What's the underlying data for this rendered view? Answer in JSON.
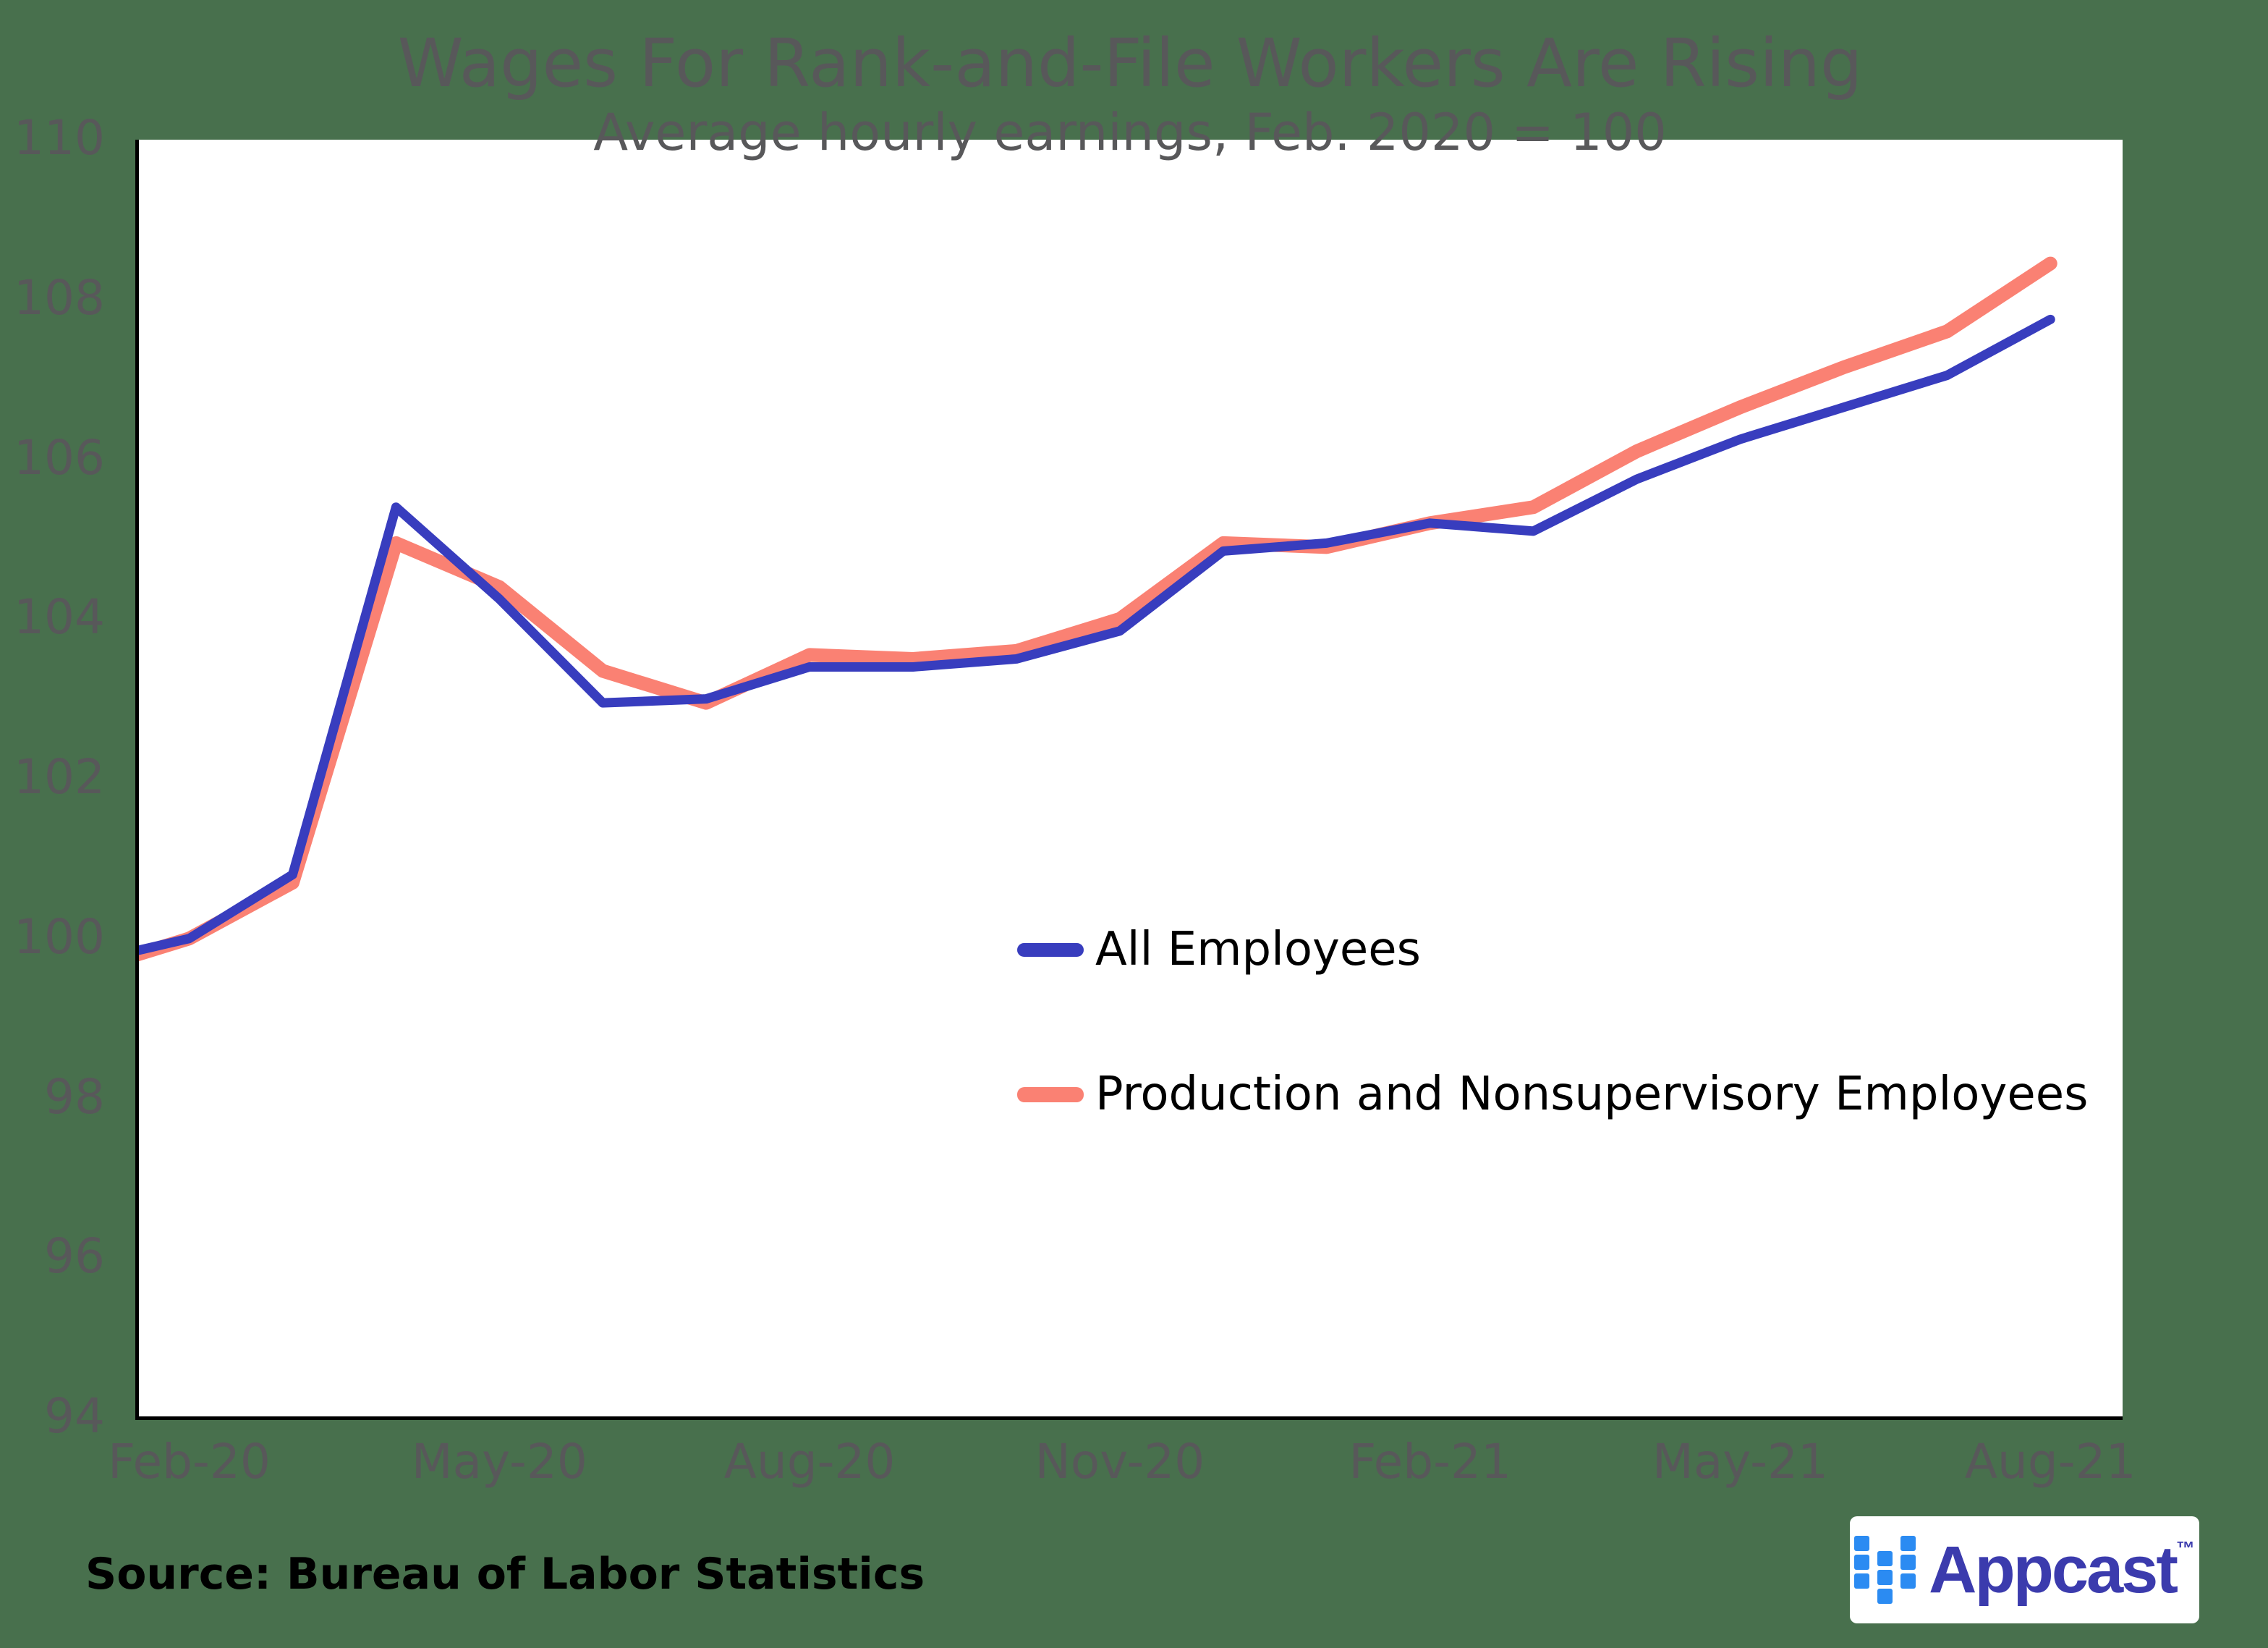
{
  "source": "Source: Bureau of Labor Statistics",
  "logo": {
    "name": "Appcast",
    "tm": "™"
  },
  "colors": {
    "background": "#48704D",
    "plot_background": "#FFFFFF",
    "axis_line": "#000000",
    "tick_text": "#58585A",
    "legend_text": "#000000",
    "logo_square_blue": "#2B8BF2",
    "logo_text_indigo": "#3B3BAD"
  },
  "chart_data": {
    "type": "line",
    "title": "Wages For Rank-and-File Workers Are Rising",
    "subtitle": "Average hourly earnings, Feb. 2020 = 100",
    "x": [
      "Jan-20",
      "Feb-20",
      "Mar-20",
      "Apr-20",
      "May-20",
      "Jun-20",
      "Jul-20",
      "Aug-20",
      "Sep-20",
      "Oct-20",
      "Nov-20",
      "Dec-20",
      "Jan-21",
      "Feb-21",
      "Mar-21",
      "Apr-21",
      "May-21",
      "Jun-21",
      "Jul-21",
      "Aug-21"
    ],
    "x_tick_labels": [
      "Feb-20",
      "May-20",
      "Aug-20",
      "Nov-20",
      "Feb-21",
      "May-21",
      "Aug-21"
    ],
    "ylim": [
      94,
      110
    ],
    "y_ticks": [
      110,
      108,
      106,
      104,
      102,
      100,
      98,
      96,
      94
    ],
    "grid": false,
    "legend_position": "inside-right-middle",
    "series": [
      {
        "name": "All Employees",
        "color": "#383DBE",
        "stroke_width": 13,
        "values": [
          99.7,
          100.0,
          100.8,
          105.4,
          104.25,
          102.95,
          103.0,
          103.4,
          103.4,
          103.5,
          103.85,
          104.85,
          104.95,
          105.2,
          105.1,
          105.75,
          106.25,
          106.65,
          107.05,
          107.75
        ]
      },
      {
        "name": "Production and Nonsupervisory Employees",
        "color": "#FA8173",
        "stroke_width": 19,
        "values": [
          99.6,
          100.0,
          100.7,
          104.95,
          104.4,
          103.35,
          102.95,
          103.55,
          103.5,
          103.6,
          104.0,
          104.95,
          104.9,
          105.2,
          105.4,
          106.1,
          106.65,
          107.15,
          107.6,
          108.45
        ]
      }
    ]
  }
}
